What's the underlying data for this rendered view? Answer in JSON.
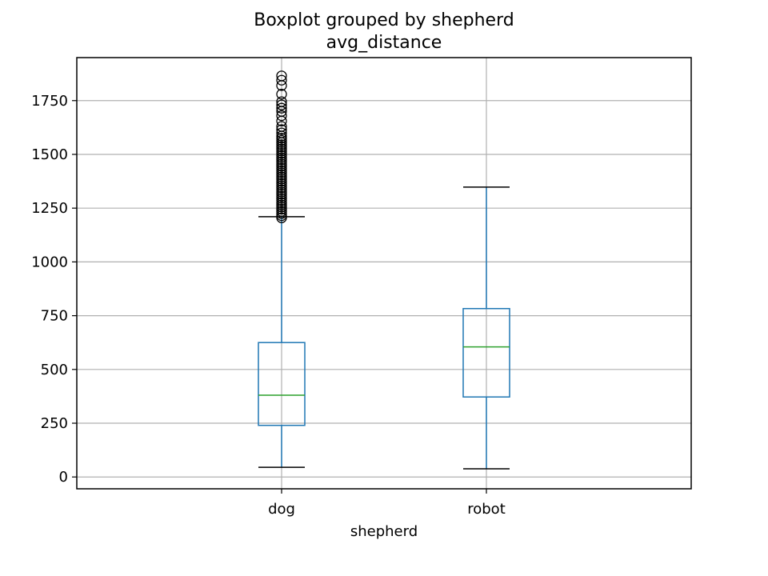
{
  "chart_data": {
    "type": "boxplot",
    "title": "Boxplot grouped by shepherd",
    "subtitle": "avg_distance",
    "xlabel": "shepherd",
    "ylabel": "",
    "categories": [
      "dog",
      "robot"
    ],
    "ylim": [
      -55,
      1950
    ],
    "yticks": [
      0,
      250,
      500,
      750,
      1000,
      1250,
      1500,
      1750
    ],
    "grid": true,
    "colors": {
      "box": "#1f77b4",
      "median": "#2ca02c",
      "whisker_cap": "#000000",
      "flier": "#000000",
      "grid": "#b0b0b0"
    },
    "boxes": [
      {
        "label": "dog",
        "whislo": 45,
        "q1": 240,
        "med": 380,
        "q3": 625,
        "whishi": 1210,
        "fliers": [
          1205,
          1215,
          1225,
          1235,
          1245,
          1255,
          1265,
          1275,
          1285,
          1295,
          1305,
          1315,
          1325,
          1335,
          1345,
          1355,
          1365,
          1375,
          1385,
          1395,
          1405,
          1415,
          1425,
          1435,
          1445,
          1455,
          1465,
          1475,
          1485,
          1495,
          1505,
          1515,
          1525,
          1535,
          1545,
          1555,
          1565,
          1575,
          1585,
          1600,
          1615,
          1630,
          1655,
          1680,
          1700,
          1715,
          1730,
          1745,
          1780,
          1820,
          1845,
          1865
        ]
      },
      {
        "label": "robot",
        "whislo": 38,
        "q1": 372,
        "med": 605,
        "q3": 783,
        "whishi": 1348,
        "fliers": []
      }
    ]
  }
}
